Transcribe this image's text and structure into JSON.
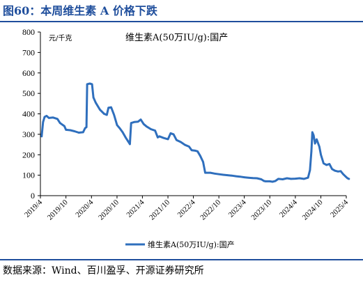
{
  "header": {
    "title": "图60：本周维生素 A 价格下跌"
  },
  "footer": {
    "source": "数据来源：Wind、百川盈孚、开源证券研究所"
  },
  "chart_data": {
    "type": "line",
    "ylabel": "元/千克",
    "annotation": "维生素A(50万IU/g):国产",
    "ylim": [
      0,
      800
    ],
    "yticks": [
      0,
      100,
      200,
      300,
      400,
      500,
      600,
      700,
      800
    ],
    "xlim": [
      "2019-04",
      "2025-04"
    ],
    "xticks": [
      "2019/4",
      "2019/10",
      "2020/4",
      "2020/10",
      "2021/4",
      "2021/10",
      "2022/4",
      "2022/10",
      "2023/4",
      "2023/10",
      "2024/4",
      "2024/10",
      "2025/4"
    ],
    "legend": "bottom-center",
    "grid": false,
    "color": "#2f6fbd",
    "series": [
      {
        "name": "维生素A(50万IU/g):国产",
        "points": [
          [
            "2019-04-10",
            290
          ],
          [
            "2019-04-20",
            360
          ],
          [
            "2019-05-01",
            385
          ],
          [
            "2019-05-15",
            390
          ],
          [
            "2019-06-01",
            380
          ],
          [
            "2019-07-01",
            382
          ],
          [
            "2019-08-01",
            375
          ],
          [
            "2019-08-20",
            355
          ],
          [
            "2019-09-20",
            340
          ],
          [
            "2019-10-01",
            322
          ],
          [
            "2019-11-01",
            320
          ],
          [
            "2019-12-01",
            315
          ],
          [
            "2020-01-01",
            308
          ],
          [
            "2020-02-01",
            310
          ],
          [
            "2020-02-15",
            330
          ],
          [
            "2020-02-25",
            335
          ],
          [
            "2020-03-01",
            545
          ],
          [
            "2020-03-20",
            548
          ],
          [
            "2020-04-05",
            545
          ],
          [
            "2020-04-15",
            480
          ],
          [
            "2020-05-01",
            455
          ],
          [
            "2020-06-01",
            420
          ],
          [
            "2020-07-01",
            400
          ],
          [
            "2020-07-20",
            395
          ],
          [
            "2020-08-01",
            430
          ],
          [
            "2020-08-20",
            432
          ],
          [
            "2020-09-10",
            395
          ],
          [
            "2020-10-01",
            345
          ],
          [
            "2020-10-20",
            330
          ],
          [
            "2020-11-10",
            310
          ],
          [
            "2020-12-01",
            285
          ],
          [
            "2020-12-20",
            265
          ],
          [
            "2021-01-01",
            252
          ],
          [
            "2021-01-10",
            355
          ],
          [
            "2021-02-01",
            360
          ],
          [
            "2021-03-01",
            362
          ],
          [
            "2021-03-20",
            372
          ],
          [
            "2021-04-10",
            350
          ],
          [
            "2021-05-01",
            338
          ],
          [
            "2021-06-01",
            325
          ],
          [
            "2021-07-01",
            318
          ],
          [
            "2021-07-20",
            285
          ],
          [
            "2021-08-01",
            290
          ],
          [
            "2021-09-01",
            282
          ],
          [
            "2021-10-01",
            276
          ],
          [
            "2021-10-20",
            305
          ],
          [
            "2021-11-10",
            300
          ],
          [
            "2021-12-01",
            272
          ],
          [
            "2022-01-01",
            262
          ],
          [
            "2022-02-01",
            248
          ],
          [
            "2022-03-01",
            240
          ],
          [
            "2022-03-20",
            222
          ],
          [
            "2022-04-15",
            220
          ],
          [
            "2022-05-01",
            217
          ],
          [
            "2022-05-20",
            195
          ],
          [
            "2022-06-10",
            165
          ],
          [
            "2022-06-25",
            112
          ],
          [
            "2022-08-01",
            112
          ],
          [
            "2022-09-01",
            108
          ],
          [
            "2022-10-01",
            105
          ],
          [
            "2022-11-01",
            102
          ],
          [
            "2022-12-01",
            100
          ],
          [
            "2023-01-01",
            98
          ],
          [
            "2023-02-01",
            95
          ],
          [
            "2023-03-01",
            93
          ],
          [
            "2023-04-01",
            90
          ],
          [
            "2023-05-01",
            88
          ],
          [
            "2023-06-01",
            86
          ],
          [
            "2023-07-01",
            85
          ],
          [
            "2023-08-01",
            80
          ],
          [
            "2023-08-20",
            72
          ],
          [
            "2023-09-01",
            70
          ],
          [
            "2023-10-01",
            70
          ],
          [
            "2023-10-20",
            68
          ],
          [
            "2023-11-10",
            72
          ],
          [
            "2023-12-01",
            82
          ],
          [
            "2024-01-01",
            80
          ],
          [
            "2024-02-01",
            85
          ],
          [
            "2024-03-01",
            82
          ],
          [
            "2024-04-01",
            83
          ],
          [
            "2024-05-01",
            85
          ],
          [
            "2024-06-01",
            82
          ],
          [
            "2024-07-01",
            88
          ],
          [
            "2024-07-15",
            125
          ],
          [
            "2024-07-25",
            215
          ],
          [
            "2024-08-01",
            310
          ],
          [
            "2024-08-10",
            295
          ],
          [
            "2024-08-20",
            255
          ],
          [
            "2024-09-01",
            275
          ],
          [
            "2024-09-20",
            240
          ],
          [
            "2024-10-01",
            200
          ],
          [
            "2024-10-20",
            158
          ],
          [
            "2024-11-10",
            150
          ],
          [
            "2024-12-01",
            155
          ],
          [
            "2024-12-20",
            130
          ],
          [
            "2025-01-10",
            122
          ],
          [
            "2025-02-01",
            118
          ],
          [
            "2025-02-20",
            120
          ],
          [
            "2025-03-10",
            105
          ],
          [
            "2025-03-25",
            95
          ],
          [
            "2025-04-10",
            85
          ],
          [
            "2025-04-20",
            82
          ]
        ]
      }
    ]
  }
}
